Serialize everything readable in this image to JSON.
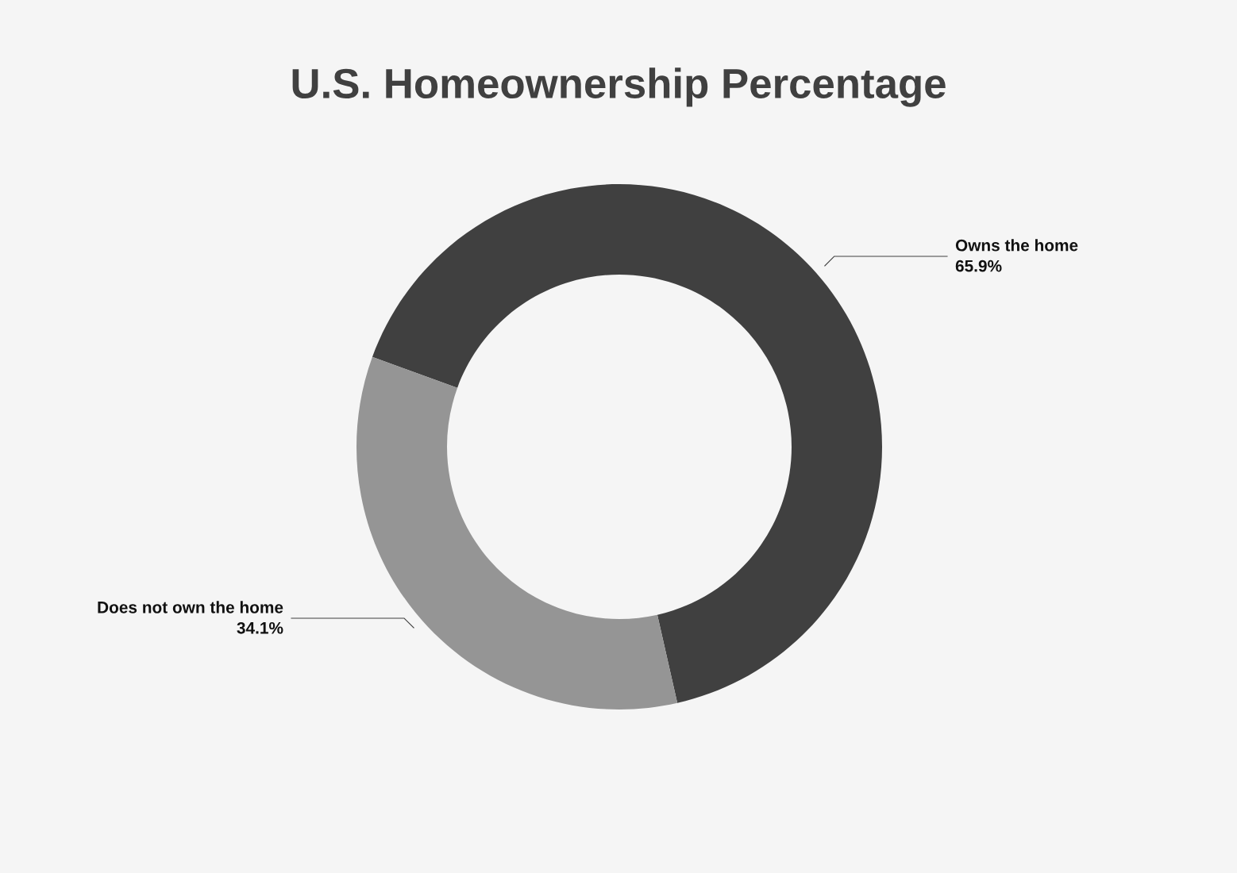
{
  "chart_data": {
    "type": "donut",
    "title": "U.S. Homeownership Percentage",
    "categories": [
      "Owns the home",
      "Does not own the home"
    ],
    "values": [
      65.9,
      34.1
    ],
    "colors": [
      "#404040",
      "#959595"
    ],
    "value_labels": [
      "65.9%",
      "34.1%"
    ]
  }
}
